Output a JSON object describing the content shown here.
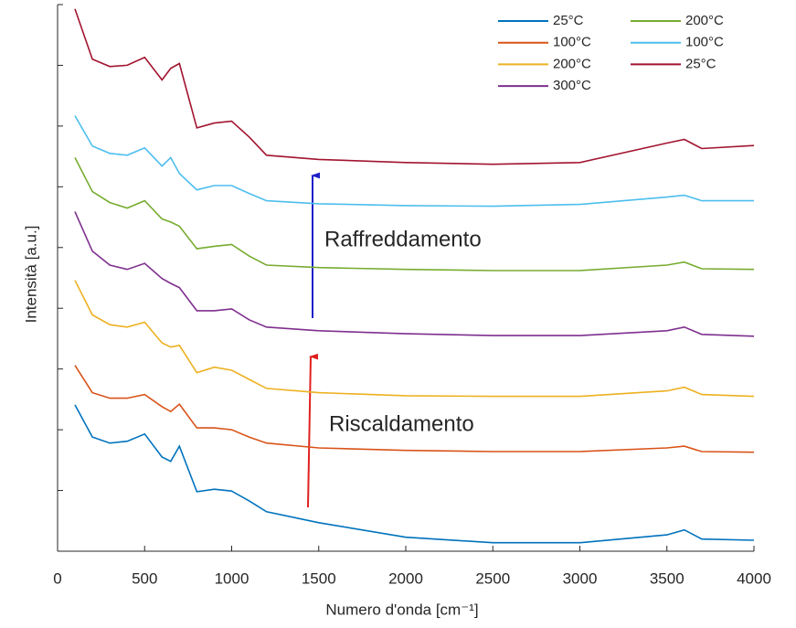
{
  "chart_data": {
    "type": "line",
    "x_label": "Numero d'onda [cm⁻¹]",
    "y_label": "Intensità [a.u.]",
    "x": [
      100,
      200,
      300,
      400,
      500,
      600,
      650,
      700,
      800,
      900,
      1000,
      1100,
      1200,
      1500,
      2000,
      2500,
      3000,
      3500,
      3600,
      3700,
      4000
    ],
    "series": [
      {
        "name": "25°C",
        "color": "#0072bd",
        "values": [
          2.41,
          1.88,
          1.78,
          1.81,
          1.93,
          1.55,
          1.48,
          1.73,
          0.98,
          1.02,
          0.99,
          0.83,
          0.65,
          0.47,
          0.23,
          0.14,
          0.14,
          0.27,
          0.35,
          0.2,
          0.18
        ]
      },
      {
        "name": "100°C",
        "color": "#d95319",
        "values": [
          3.06,
          2.61,
          2.52,
          2.52,
          2.58,
          2.38,
          2.3,
          2.42,
          2.03,
          2.03,
          2.0,
          1.88,
          1.78,
          1.7,
          1.66,
          1.64,
          1.64,
          1.7,
          1.73,
          1.64,
          1.63
        ]
      },
      {
        "name": "200°C",
        "color": "#edb120",
        "values": [
          4.46,
          3.89,
          3.73,
          3.69,
          3.77,
          3.43,
          3.36,
          3.39,
          2.94,
          3.03,
          2.98,
          2.83,
          2.68,
          2.61,
          2.56,
          2.55,
          2.55,
          2.64,
          2.7,
          2.58,
          2.55
        ]
      },
      {
        "name": "300°C",
        "color": "#7e2f8e",
        "values": [
          5.59,
          4.94,
          4.71,
          4.64,
          4.74,
          4.49,
          4.41,
          4.34,
          3.96,
          3.96,
          3.99,
          3.81,
          3.69,
          3.63,
          3.58,
          3.55,
          3.55,
          3.63,
          3.69,
          3.57,
          3.54
        ]
      },
      {
        "name": "200°C",
        "color": "#77ac30",
        "values": [
          6.48,
          5.92,
          5.74,
          5.65,
          5.77,
          5.47,
          5.42,
          5.35,
          4.98,
          5.02,
          5.05,
          4.86,
          4.71,
          4.67,
          4.64,
          4.62,
          4.62,
          4.71,
          4.76,
          4.65,
          4.64
        ]
      },
      {
        "name": "100°C",
        "color": "#4dbeee",
        "values": [
          7.17,
          6.67,
          6.55,
          6.52,
          6.64,
          6.34,
          6.48,
          6.22,
          5.95,
          6.02,
          6.02,
          5.89,
          5.77,
          5.72,
          5.69,
          5.68,
          5.71,
          5.83,
          5.86,
          5.77,
          5.77
        ]
      },
      {
        "name": "25°C",
        "color": "#a2142f",
        "values": [
          8.93,
          8.1,
          7.98,
          8.0,
          8.13,
          7.76,
          7.95,
          8.03,
          6.97,
          7.05,
          7.08,
          6.82,
          6.52,
          6.45,
          6.4,
          6.37,
          6.4,
          6.72,
          6.78,
          6.63,
          6.68
        ]
      }
    ],
    "xlim": [
      0,
      4000
    ],
    "xticks": [
      0,
      500,
      1000,
      1500,
      2000,
      2500,
      3000,
      3500,
      4000
    ],
    "ylim": [
      0,
      9
    ],
    "yticks": [
      1,
      2,
      3,
      4,
      5,
      6,
      7,
      8,
      9
    ],
    "legend": "upper right",
    "annotations": [
      {
        "text": "Raffreddamento",
        "color": "#1f1fc8"
      },
      {
        "text": "Riscaldamento",
        "color": "#e02020"
      }
    ]
  }
}
